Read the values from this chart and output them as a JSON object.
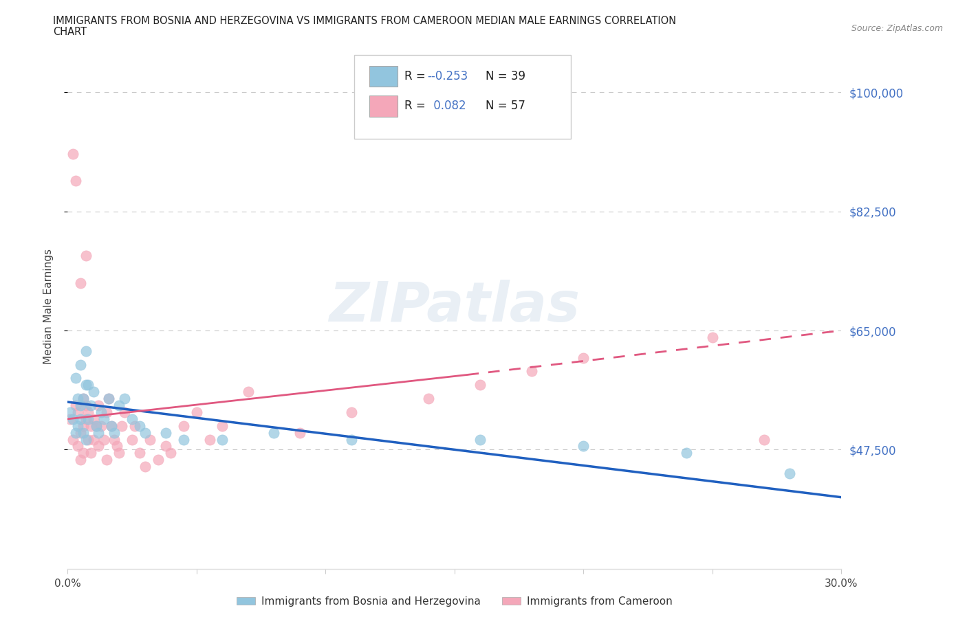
{
  "title_line1": "IMMIGRANTS FROM BOSNIA AND HERZEGOVINA VS IMMIGRANTS FROM CAMEROON MEDIAN MALE EARNINGS CORRELATION",
  "title_line2": "CHART",
  "source": "Source: ZipAtlas.com",
  "xlabel_left": "Immigrants from Bosnia and Herzegovina",
  "xlabel_right": "Immigrants from Cameroon",
  "ylabel": "Median Male Earnings",
  "xlim": [
    0.0,
    0.3
  ],
  "ylim": [
    30000,
    107000
  ],
  "yticks": [
    47500,
    65000,
    82500,
    100000
  ],
  "ytick_labels": [
    "$47,500",
    "$65,000",
    "$82,500",
    "$100,000"
  ],
  "xticks": [
    0.0,
    0.05,
    0.1,
    0.15,
    0.2,
    0.25,
    0.3
  ],
  "xtick_labels": [
    "0.0%",
    "",
    "",
    "",
    "",
    "",
    "30.0%"
  ],
  "color_bosnia": "#92C5DE",
  "color_cameroon": "#F4A7B9",
  "color_trend_bosnia": "#2060C0",
  "color_trend_cameroon": "#E05880",
  "color_axis_right": "#4472C4",
  "watermark_text": "ZIPatlas",
  "legend_r_bosnia": "-0.253",
  "legend_n_bosnia": "39",
  "legend_r_cameroon": "0.082",
  "legend_n_cameroon": "57",
  "bos_trend_x0": 0.0,
  "bos_trend_y0": 54500,
  "bos_trend_x1": 0.3,
  "bos_trend_y1": 40500,
  "cam_trend_solid_x0": 0.0,
  "cam_trend_solid_y0": 52000,
  "cam_trend_solid_x1": 0.155,
  "cam_trend_solid_y1": 58500,
  "cam_trend_dash_x0": 0.155,
  "cam_trend_dash_y0": 58500,
  "cam_trend_dash_x1": 0.3,
  "cam_trend_dash_y1": 65000,
  "bosnia_x": [
    0.001,
    0.002,
    0.003,
    0.003,
    0.004,
    0.004,
    0.005,
    0.005,
    0.005,
    0.006,
    0.006,
    0.007,
    0.007,
    0.007,
    0.008,
    0.008,
    0.009,
    0.01,
    0.011,
    0.012,
    0.013,
    0.014,
    0.016,
    0.017,
    0.018,
    0.02,
    0.022,
    0.025,
    0.028,
    0.03,
    0.038,
    0.045,
    0.06,
    0.08,
    0.11,
    0.16,
    0.2,
    0.24,
    0.28
  ],
  "bosnia_y": [
    53000,
    52000,
    58000,
    50000,
    55000,
    51000,
    54000,
    52000,
    60000,
    50000,
    55000,
    49000,
    57000,
    62000,
    57000,
    52000,
    54000,
    56000,
    51000,
    50000,
    53000,
    52000,
    55000,
    51000,
    50000,
    54000,
    55000,
    52000,
    51000,
    50000,
    50000,
    49000,
    49000,
    50000,
    49000,
    49000,
    48000,
    47000,
    44000
  ],
  "cameroon_x": [
    0.001,
    0.002,
    0.002,
    0.003,
    0.003,
    0.004,
    0.004,
    0.005,
    0.005,
    0.005,
    0.006,
    0.006,
    0.006,
    0.007,
    0.007,
    0.007,
    0.008,
    0.008,
    0.009,
    0.009,
    0.01,
    0.01,
    0.011,
    0.012,
    0.012,
    0.013,
    0.014,
    0.015,
    0.015,
    0.016,
    0.017,
    0.018,
    0.019,
    0.02,
    0.021,
    0.022,
    0.025,
    0.026,
    0.028,
    0.03,
    0.032,
    0.035,
    0.038,
    0.04,
    0.045,
    0.05,
    0.055,
    0.06,
    0.07,
    0.09,
    0.11,
    0.14,
    0.16,
    0.18,
    0.2,
    0.25,
    0.27
  ],
  "cameroon_y": [
    52000,
    49000,
    91000,
    54000,
    87000,
    53000,
    48000,
    72000,
    50000,
    46000,
    51000,
    55000,
    47000,
    54000,
    76000,
    52000,
    49000,
    53000,
    47000,
    51000,
    49000,
    52000,
    51000,
    48000,
    54000,
    51000,
    49000,
    53000,
    46000,
    55000,
    51000,
    49000,
    48000,
    47000,
    51000,
    53000,
    49000,
    51000,
    47000,
    45000,
    49000,
    46000,
    48000,
    47000,
    51000,
    53000,
    49000,
    51000,
    56000,
    50000,
    53000,
    55000,
    57000,
    59000,
    61000,
    64000,
    49000
  ]
}
